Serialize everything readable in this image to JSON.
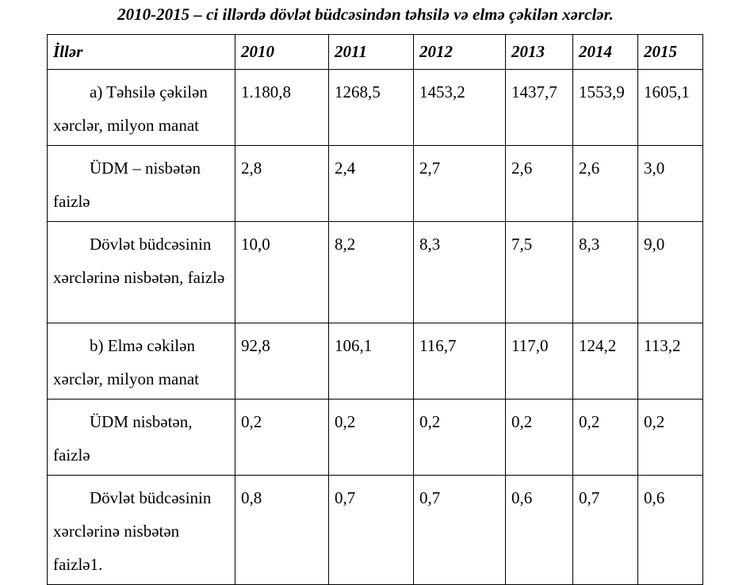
{
  "document": {
    "caption": "2010-2015 – ci illərdə dövlət büdcəsindən təhsilə və elmə çəkilən xərclər.",
    "table": {
      "header": {
        "label": "İllər",
        "years": [
          "2010",
          "2011",
          "2012",
          "2013",
          "2014",
          "2015"
        ]
      },
      "rows": [
        {
          "label": "a) Təhsilə çəkilən xərclər, milyon manat",
          "values": [
            "1.180,8",
            "1268,5",
            "1453,2",
            "1437,7",
            "1553,9",
            "1605,1"
          ]
        },
        {
          "label": "ÜDM – nisbətən faizlə",
          "values": [
            "2,8",
            "2,4",
            "2,7",
            "2,6",
            "2,6",
            "3,0"
          ]
        },
        {
          "label": "Dövlət büdcəsinin xərclərinə nisbətən, faizlə",
          "values": [
            "10,0",
            "8,2",
            "8,3",
            "7,5",
            "8,3",
            "9,0"
          ]
        },
        {
          "label": "b) Elmə cəkilən xərclər, milyon manat",
          "values": [
            "92,8",
            "106,1",
            "116,7",
            "117,0",
            "124,2",
            "113,2"
          ]
        },
        {
          "label": "ÜDM nisbətən, faizlə",
          "values": [
            "0,2",
            "0,2",
            "0,2",
            "0,2",
            "0,2",
            "0,2"
          ]
        },
        {
          "label": "Dövlət büdcəsinin xərclərinə nisbətən faizlə1.",
          "values": [
            "0,8",
            "0,7",
            "0,7",
            "0,6",
            "0,7",
            "0,6"
          ]
        }
      ]
    }
  }
}
